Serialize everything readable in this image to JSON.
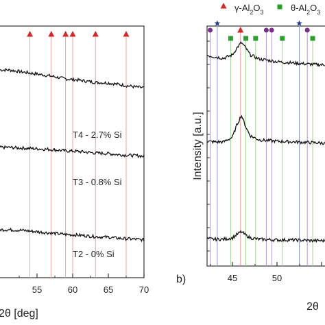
{
  "chart_data": [
    {
      "type": "line",
      "panel_label": "",
      "xlabel": "2θ [deg]",
      "ylabel": "",
      "xlim": [
        51,
        70
      ],
      "xticks": [
        55,
        60,
        65,
        70
      ],
      "xtick_labels": [
        "55",
        "60",
        "65",
        "70"
      ],
      "reference_lines": {
        "marker": "triangle",
        "color": "#d62728",
        "x": [
          54.0,
          57.0,
          59.0,
          60.0,
          63.2,
          67.5
        ]
      },
      "series": [
        {
          "name": "T4 - 2.7% Si",
          "x": [
            51,
            53,
            55,
            57,
            59,
            61,
            63,
            65,
            67,
            69,
            70
          ],
          "y": [
            58,
            55,
            52,
            49,
            45,
            43,
            40,
            39,
            36,
            33,
            32
          ]
        },
        {
          "name": "T3 - 0.8% Si",
          "x": [
            51,
            53,
            55,
            57,
            59,
            61,
            63,
            65,
            67,
            69,
            70
          ],
          "y": [
            29,
            28,
            27,
            26,
            24,
            23,
            21,
            20,
            18,
            17,
            16
          ]
        },
        {
          "name": "T2 - 0% Si",
          "x": [
            51,
            53,
            55,
            57,
            59,
            61,
            63,
            65,
            67,
            69,
            70
          ],
          "y": [
            3,
            2,
            0,
            -2,
            -4,
            -5,
            -7,
            -8,
            -10,
            -11,
            -12
          ]
        }
      ]
    },
    {
      "type": "line",
      "panel_label": "b)",
      "xlabel": "2θ",
      "ylabel": "Intensity [a.u.]",
      "xlim": [
        42,
        57
      ],
      "xticks": [
        45,
        50,
        55
      ],
      "xtick_labels": [
        "45",
        "50",
        ""
      ],
      "legend": [
        {
          "label": "γ-Al2O3",
          "marker": "triangle",
          "color": "#d62728"
        },
        {
          "label": "θ-Al2O3",
          "marker": "square",
          "color": "#2ca02c"
        }
      ],
      "reference_lines": [
        {
          "marker": "circle",
          "color": "#7b2d8b",
          "x": [
            42.5,
            48.8,
            49.4,
            53.4
          ]
        },
        {
          "marker": "star",
          "color": "#1f3b8c",
          "x": [
            43.3,
            52.5
          ]
        },
        {
          "marker": "triangle",
          "color": "#d62728",
          "x": [
            45.9
          ]
        },
        {
          "marker": "square",
          "color": "#2ca02c",
          "x": [
            44.8,
            46.5,
            47.6,
            50.6,
            54.0
          ]
        }
      ],
      "series": [
        {
          "name": "",
          "x": [
            42,
            43,
            44,
            45,
            45.5,
            46,
            46.5,
            47,
            48,
            50,
            52,
            54,
            56,
            57
          ],
          "y": [
            70,
            67,
            65,
            70,
            80,
            88,
            80,
            70,
            64,
            60,
            58,
            56,
            55,
            55
          ]
        },
        {
          "name": "",
          "x": [
            42,
            43,
            44,
            45,
            45.5,
            46,
            46.5,
            47,
            48,
            50,
            52,
            54,
            56,
            57
          ],
          "y": [
            34,
            33,
            33,
            40,
            58,
            72,
            55,
            42,
            36,
            34,
            33,
            32,
            31,
            31
          ]
        },
        {
          "name": "",
          "x": [
            42,
            43,
            44,
            45,
            45.5,
            46,
            46.5,
            47,
            48,
            50,
            52,
            54,
            56,
            57
          ],
          "y": [
            0,
            -1,
            -1,
            1,
            6,
            10,
            5,
            1,
            -1,
            -2,
            -2,
            -3,
            -3,
            -3
          ]
        }
      ]
    }
  ]
}
